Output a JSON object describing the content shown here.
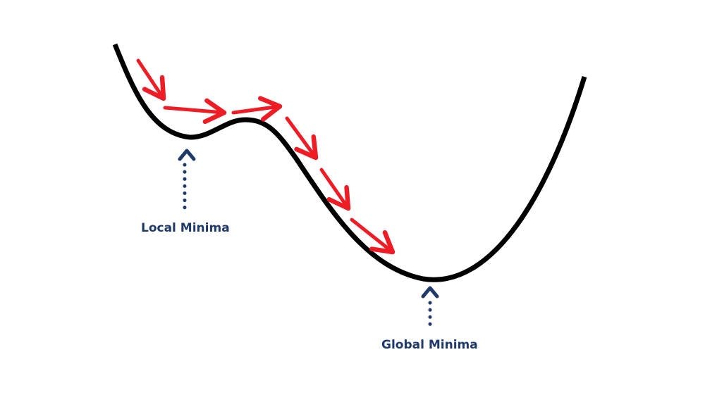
{
  "labels": {
    "local_minima": "Local Minima",
    "global_minima": "Global Minima"
  },
  "colors": {
    "curve": "#000000",
    "step_arrows": "#ee1c25",
    "pointer": "#1e3a6b",
    "label_text": "#1e3a6b"
  }
}
